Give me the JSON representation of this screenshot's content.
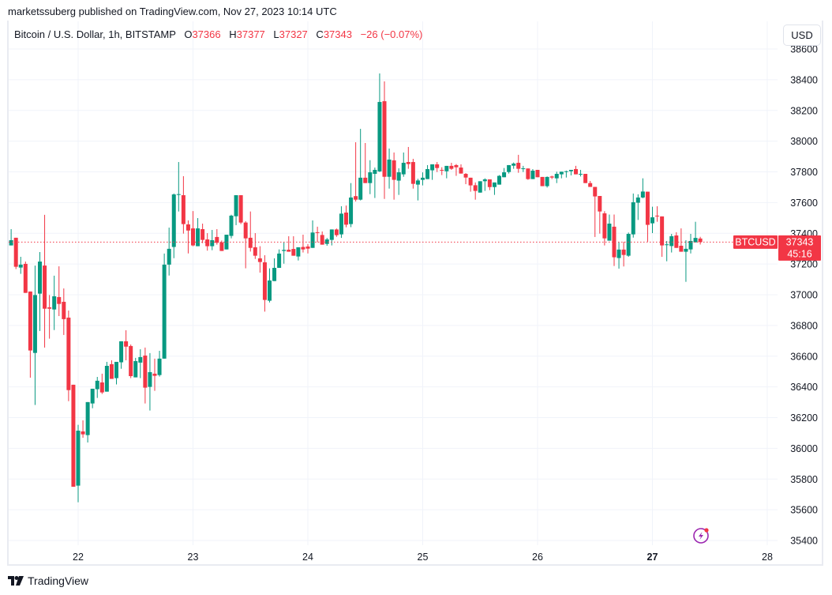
{
  "header": {
    "published": "marketssuberg published on TradingView.com, Nov 27, 2023 10:14 UTC"
  },
  "legend": {
    "symbol": "Bitcoin / U.S. Dollar, 1h, BITSTAMP",
    "o_label": "O",
    "o": "37366",
    "h_label": "H",
    "h": "37377",
    "l_label": "L",
    "l": "37327",
    "c_label": "C",
    "c": "37343",
    "change": "−26 (−0.07%)"
  },
  "currency_button": "USD",
  "last_price": {
    "symbol_tag": "BTCUSD",
    "price": "37343",
    "countdown": "45:16"
  },
  "footer": {
    "brand": "TradingView"
  },
  "icons": {
    "alert": "lightning-icon",
    "logo": "tradingview-logo-icon"
  },
  "colors": {
    "up": "#089981",
    "down": "#f23645",
    "alert": "#9c27b0"
  },
  "chart_data": {
    "type": "candlestick",
    "interval": "1h",
    "x_ticks": [
      {
        "label": "22",
        "bold": false
      },
      {
        "label": "23",
        "bold": false
      },
      {
        "label": "24",
        "bold": false
      },
      {
        "label": "25",
        "bold": false
      },
      {
        "label": "26",
        "bold": false
      },
      {
        "label": "27",
        "bold": true
      },
      {
        "label": "28",
        "bold": false
      }
    ],
    "y_ticks": [
      35400,
      35600,
      35800,
      36000,
      36200,
      36400,
      36600,
      36800,
      37000,
      37200,
      37400,
      37600,
      37800,
      38000,
      38200,
      38400,
      38600
    ],
    "ylim": [
      35400,
      38600
    ],
    "last_candle_hours_after_first_tick": 130,
    "candles_ohlc": [
      [
        37427,
        37427,
        37324,
        37324
      ],
      [
        37321,
        37427,
        37321,
        37355
      ],
      [
        37371,
        37371,
        37167,
        37182
      ],
      [
        37177,
        37247,
        37136,
        37196
      ],
      [
        37201,
        37216,
        37012,
        37012
      ],
      [
        37021,
        37021,
        36460,
        36637
      ],
      [
        36621,
        37190,
        36282,
        36998
      ],
      [
        37007,
        37278,
        36764,
        37216
      ],
      [
        37190,
        37520,
        36656,
        36909
      ],
      [
        36918,
        36998,
        36714,
        36909
      ],
      [
        36904,
        37124,
        36770,
        36990
      ],
      [
        36985,
        37185,
        36861,
        36940
      ],
      [
        36954,
        37041,
        36738,
        36841
      ],
      [
        36851,
        36897,
        36307,
        36379
      ],
      [
        36414,
        36414,
        35750,
        35750
      ],
      [
        35757,
        36153,
        35649,
        36115
      ],
      [
        36110,
        36182,
        36069,
        36091
      ],
      [
        36086,
        36301,
        36038,
        36301
      ],
      [
        36292,
        36388,
        36261,
        36388
      ],
      [
        36385,
        36465,
        36328,
        36440
      ],
      [
        36429,
        36486,
        36354,
        36364
      ],
      [
        36369,
        36563,
        36369,
        36537
      ],
      [
        36548,
        36573,
        36452,
        36452
      ],
      [
        36457,
        36563,
        36416,
        36563
      ],
      [
        36560,
        36697,
        36518,
        36697
      ],
      [
        36697,
        36769,
        36573,
        36662
      ],
      [
        36666,
        36676,
        36457,
        36470
      ],
      [
        36462,
        36589,
        36462,
        36568
      ],
      [
        36558,
        36645,
        36457,
        36594
      ],
      [
        36604,
        36656,
        36292,
        36395
      ],
      [
        36400,
        36620,
        36246,
        36496
      ],
      [
        36486,
        36584,
        36374,
        36472
      ],
      [
        36477,
        36635,
        36467,
        36584
      ],
      [
        36584,
        37268,
        36584,
        37196
      ],
      [
        37196,
        37437,
        37125,
        37299
      ],
      [
        37311,
        37659,
        37238,
        37653
      ],
      [
        37651,
        37864,
        37542,
        37655
      ],
      [
        37648,
        37772,
        37398,
        37460
      ],
      [
        37458,
        37484,
        37269,
        37418
      ],
      [
        37432,
        37545,
        37316,
        37321
      ],
      [
        37316,
        37499,
        37316,
        37432
      ],
      [
        37427,
        37463,
        37336,
        37357
      ],
      [
        37360,
        37401,
        37287,
        37316
      ],
      [
        37316,
        37422,
        37290,
        37355
      ],
      [
        37376,
        37427,
        37326,
        37338
      ],
      [
        37341,
        37353,
        37285,
        37285
      ],
      [
        37295,
        37391,
        37295,
        37391
      ],
      [
        37383,
        37521,
        37367,
        37515
      ],
      [
        37511,
        37648,
        37453,
        37648
      ],
      [
        37648,
        37648,
        37460,
        37470
      ],
      [
        37470,
        37479,
        37172,
        37367
      ],
      [
        37371,
        37542,
        37281,
        37305
      ],
      [
        37309,
        37401,
        37233,
        37254
      ],
      [
        37237,
        37316,
        37144,
        37213
      ],
      [
        37211,
        37257,
        36890,
        36966
      ],
      [
        36961,
        37172,
        36950,
        37093
      ],
      [
        37089,
        37237,
        37089,
        37175
      ],
      [
        37175,
        37295,
        37175,
        37268
      ],
      [
        37285,
        37341,
        37202,
        37292
      ],
      [
        37293,
        37381,
        37280,
        37280
      ],
      [
        37298,
        37381,
        37254,
        37254
      ],
      [
        37249,
        37309,
        37223,
        37309
      ],
      [
        37311,
        37391,
        37275,
        37295
      ],
      [
        37314,
        37329,
        37269,
        37300
      ],
      [
        37305,
        37484,
        37305,
        37405
      ],
      [
        37407,
        37443,
        37341,
        37403
      ],
      [
        37389,
        37412,
        37326,
        37326
      ],
      [
        37331,
        37370,
        37319,
        37360
      ],
      [
        37357,
        37425,
        37321,
        37425
      ],
      [
        37425,
        37431,
        37377,
        37388
      ],
      [
        37393,
        37576,
        37370,
        37528
      ],
      [
        37535,
        37581,
        37439,
        37456
      ],
      [
        37460,
        37727,
        37440,
        37633
      ],
      [
        37642,
        37993,
        37607,
        37619
      ],
      [
        37619,
        38080,
        37614,
        37762
      ],
      [
        37762,
        37988,
        37727,
        37727
      ],
      [
        37727,
        37876,
        37655,
        37797
      ],
      [
        37787,
        37828,
        37630,
        37813
      ],
      [
        37803,
        38441,
        37799,
        38255
      ],
      [
        38260,
        38389,
        37624,
        37768
      ],
      [
        37768,
        37952,
        37691,
        37880
      ],
      [
        37875,
        37926,
        37619,
        37748
      ],
      [
        37743,
        37823,
        37650,
        37797
      ],
      [
        37784,
        37926,
        37768,
        37859
      ],
      [
        37864,
        37962,
        37820,
        37851
      ],
      [
        37864,
        37885,
        37691,
        37722
      ],
      [
        37717,
        37755,
        37614,
        37744
      ],
      [
        37748,
        37797,
        37712,
        37762
      ],
      [
        37753,
        37844,
        37753,
        37818
      ],
      [
        37810,
        37849,
        37748,
        37849
      ],
      [
        37849,
        37864,
        37799,
        37825
      ],
      [
        37813,
        37830,
        37779,
        37810
      ],
      [
        37804,
        37839,
        37758,
        37839
      ],
      [
        37839,
        37859,
        37813,
        37820
      ],
      [
        37844,
        37851,
        37774,
        37830
      ],
      [
        37828,
        37849,
        37789,
        37789
      ],
      [
        37787,
        37792,
        37720,
        37763
      ],
      [
        37762,
        37762,
        37671,
        37712
      ],
      [
        37713,
        37731,
        37619,
        37676
      ],
      [
        37665,
        37739,
        37665,
        37739
      ],
      [
        37739,
        37758,
        37676,
        37751
      ],
      [
        37751,
        37751,
        37681,
        37701
      ],
      [
        37701,
        37731,
        37650,
        37731
      ],
      [
        37717,
        37779,
        37717,
        37774
      ],
      [
        37765,
        37825,
        37765,
        37797
      ],
      [
        37799,
        37844,
        37789,
        37844
      ],
      [
        37840,
        37861,
        37820,
        37854
      ],
      [
        37859,
        37911,
        37794,
        37820
      ],
      [
        37822,
        37839,
        37799,
        37823
      ],
      [
        37822,
        37822,
        37748,
        37753
      ],
      [
        37753,
        37818,
        37753,
        37808
      ],
      [
        37813,
        37813,
        37765,
        37765
      ],
      [
        37767,
        37767,
        37707,
        37707
      ],
      [
        37707,
        37770,
        37698,
        37767
      ],
      [
        37770,
        37775,
        37753,
        37763
      ],
      [
        37758,
        37801,
        37727,
        37787
      ],
      [
        37784,
        37801,
        37758,
        37801
      ],
      [
        37801,
        37808,
        37763,
        37804
      ],
      [
        37804,
        37813,
        37777,
        37813
      ],
      [
        37818,
        37839,
        37784,
        37784
      ],
      [
        37784,
        37813,
        37770,
        37787
      ],
      [
        37787,
        37787,
        37727,
        37727
      ],
      [
        37727,
        37741,
        37702,
        37702
      ],
      [
        37702,
        37702,
        37376,
        37640
      ],
      [
        37643,
        37643,
        37398,
        37542
      ],
      [
        37530,
        37544,
        37321,
        37367
      ],
      [
        37352,
        37522,
        37352,
        37463
      ],
      [
        37443,
        37522,
        37187,
        37244
      ],
      [
        37239,
        37345,
        37170,
        37294
      ],
      [
        37294,
        37345,
        37184,
        37259
      ],
      [
        37254,
        37405,
        37247,
        37396
      ],
      [
        37393,
        37659,
        37372,
        37602
      ],
      [
        37599,
        37654,
        37487,
        37633
      ],
      [
        37633,
        37758,
        37628,
        37672
      ],
      [
        37671,
        37671,
        37345,
        37455
      ],
      [
        37465,
        37573,
        37401,
        37504
      ],
      [
        37515,
        37576,
        37475,
        37511
      ],
      [
        37510,
        37510,
        37247,
        37321
      ],
      [
        37324,
        37350,
        37218,
        37328
      ],
      [
        37317,
        37396,
        37275,
        37381
      ],
      [
        37386,
        37407,
        37305,
        37305
      ],
      [
        37319,
        37432,
        37280,
        37280
      ],
      [
        37280,
        37355,
        37084,
        37299
      ],
      [
        37295,
        37396,
        37269,
        37350
      ],
      [
        37341,
        37475,
        37341,
        37370
      ],
      [
        37366,
        37377,
        37327,
        37343
      ]
    ]
  }
}
